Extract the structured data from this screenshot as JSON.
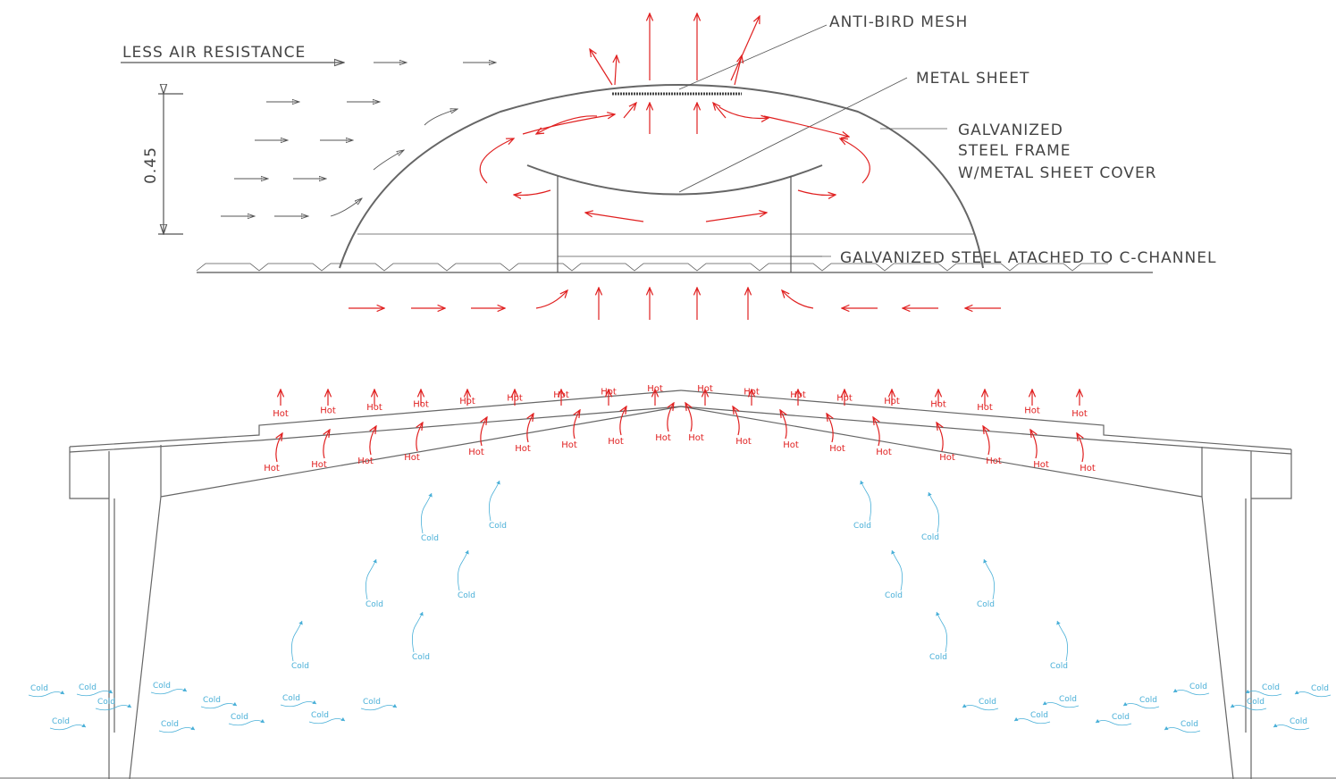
{
  "labels": {
    "less_air": "LESS AIR RESISTANCE",
    "dimension": "0.45",
    "mesh": "ANTI-BIRD MESH",
    "sheet": "METAL SHEET",
    "frame": [
      "GALVANIZED",
      "STEEL FRAME",
      "W/METAL SHEET COVER"
    ],
    "channel": "GALVANIZED STEEL ATACHED TO C-CHANNEL"
  },
  "hot_upper": [
    "Hot",
    "Hot",
    "Hot",
    "Hot",
    "Hot",
    "Hot",
    "Hot",
    "Hot",
    "Hot",
    "Hot",
    "Hot",
    "Hot",
    "Hot",
    "Hot",
    "Hot",
    "Hot",
    "Hot",
    "Hot"
  ],
  "hot_lower": [
    "Hot",
    "Hot",
    "Hot",
    "Hot",
    "Hot",
    "Hot",
    "Hot",
    "Hot",
    "Hot",
    "Hot",
    "Hot",
    "Hot",
    "Hot",
    "Hot",
    "Hot",
    "Hot",
    "Hot",
    "Hot"
  ],
  "cold": [
    "Cold",
    "Cold",
    "Cold",
    "Cold",
    "Cold",
    "Cold",
    "Cold",
    "Cold",
    "Cold",
    "Cold",
    "Cold",
    "Cold",
    "Cold",
    "Cold",
    "Cold",
    "Cold",
    "Cold",
    "Cold",
    "Cold",
    "Cold",
    "Cold",
    "Cold",
    "Cold",
    "Cold",
    "Cold",
    "Cold",
    "Cold",
    "Cold",
    "Cold",
    "Cold",
    "Cold",
    "Cold",
    "Cold",
    "Cold"
  ]
}
